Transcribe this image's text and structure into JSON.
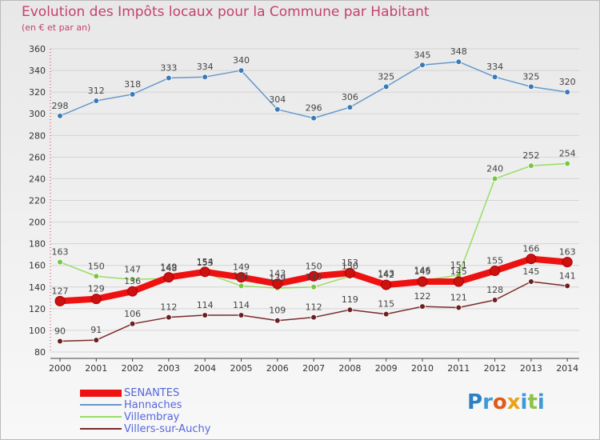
{
  "title": "Evolution des Impôts locaux pour la Commune par Habitant",
  "subtitle": "(en € et par an)",
  "logo": {
    "text": "Proxiti",
    "colors": [
      "#2f7fc4",
      "#3d9ad6",
      "#e05a1a",
      "#e8a21b",
      "#3d9ad6",
      "#8bc34a",
      "#3d9ad6"
    ]
  },
  "legend": [
    {
      "label": "SENANTES",
      "color": "#ee1111",
      "thickness": 9
    },
    {
      "label": "Hannaches",
      "color": "#6699cc",
      "thickness": 2
    },
    {
      "label": "Villembray",
      "color": "#99dd66",
      "thickness": 2
    },
    {
      "label": "Villers-sur-Auchy",
      "color": "#7a2a2a",
      "thickness": 2
    }
  ],
  "chart_data": {
    "type": "line",
    "title": "Evolution des Impôts locaux pour la Commune par Habitant",
    "subtitle": "(en € et par an)",
    "x": [
      "2000",
      "2001",
      "2002",
      "2003",
      "2004",
      "2005",
      "2006",
      "2007",
      "2008",
      "2009",
      "2010",
      "2011",
      "2012",
      "2013",
      "2014"
    ],
    "ylim": [
      80,
      360
    ],
    "yticks": [
      "80",
      "100",
      "120",
      "140",
      "160",
      "180",
      "200",
      "220",
      "240",
      "260",
      "280",
      "300",
      "320",
      "340",
      "360"
    ],
    "grid": "horizontal",
    "legend_position": "bottom-left",
    "series": [
      {
        "name": "SENANTES",
        "color": "#ee1111",
        "marker": "#cc1111",
        "values": [
          127,
          129,
          136,
          149,
          154,
          149,
          143,
          150,
          153,
          142,
          145,
          145,
          155,
          166,
          163
        ],
        "labels": [
          "127",
          "129",
          "136",
          "149",
          "154",
          "149",
          "143",
          "150",
          "153",
          "142",
          "145",
          "145",
          "155",
          "166",
          "163"
        ]
      },
      {
        "name": "Hannaches",
        "color": "#6699cc",
        "marker": "#3a79b8",
        "values": [
          298,
          312,
          318,
          333,
          334,
          340,
          304,
          296,
          306,
          325,
          345,
          348,
          334,
          325,
          320
        ],
        "labels": [
          "298",
          "312",
          "318",
          "333",
          "334",
          "340",
          "304",
          "296",
          "306",
          "325",
          "345",
          "348",
          "334",
          "325",
          "320"
        ]
      },
      {
        "name": "Villembray",
        "color": "#99dd66",
        "marker": "#77c640",
        "values": [
          163,
          150,
          147,
          148,
          153,
          141,
          139,
          140,
          150,
          143,
          146,
          151,
          240,
          252,
          254
        ],
        "labels": [
          "163",
          "150",
          "147",
          "148",
          "153",
          "141",
          "139",
          "140",
          "150",
          "143",
          "146",
          "151",
          "240",
          "252",
          "254"
        ]
      },
      {
        "name": "Villers-sur-Auchy",
        "color": "#7a2a2a",
        "marker": "#6b1f1f",
        "values": [
          90,
          91,
          106,
          112,
          114,
          114,
          109,
          112,
          119,
          115,
          122,
          121,
          128,
          145,
          141
        ],
        "labels": [
          "90",
          "91",
          "106",
          "112",
          "114",
          "114",
          "109",
          "112",
          "119",
          "115",
          "122",
          "121",
          "128",
          "145",
          "141"
        ]
      }
    ]
  }
}
